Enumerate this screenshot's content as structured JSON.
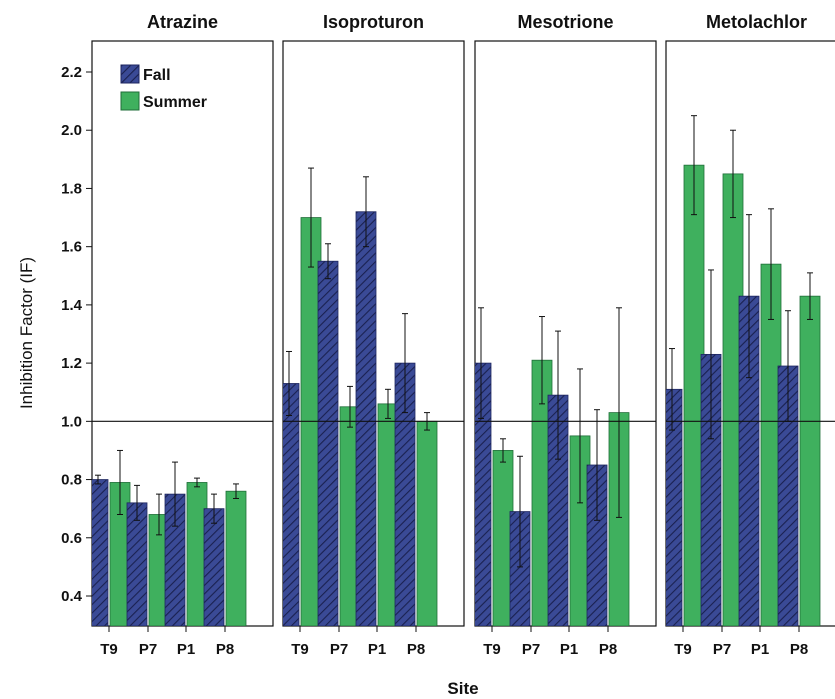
{
  "chart_data": {
    "type": "bar",
    "xlabel": "Site",
    "ylabel": "Inhibition Factor (IF)",
    "ylim": [
      0.3,
      2.3
    ],
    "yticks": [
      "0.4",
      "0.6",
      "0.8",
      "1.0",
      "1.2",
      "1.4",
      "1.6",
      "1.8",
      "2.0",
      "2.2"
    ],
    "reference_line": 1.0,
    "grid": false,
    "legend_position": "top-left",
    "categories": [
      "T9",
      "P7",
      "P1",
      "P8"
    ],
    "series_colors": {
      "Fall": "#3a4a96",
      "Summer": "#3fb05e"
    },
    "panels": [
      {
        "title": "Atrazine",
        "series": [
          {
            "name": "Fall",
            "values": [
              0.8,
              0.72,
              0.75,
              0.7
            ],
            "errors": [
              0.015,
              0.06,
              0.11,
              0.05
            ]
          },
          {
            "name": "Summer",
            "values": [
              0.79,
              0.68,
              0.79,
              0.76
            ],
            "errors": [
              0.11,
              0.07,
              0.015,
              0.025
            ]
          }
        ]
      },
      {
        "title": "Isoproturon",
        "series": [
          {
            "name": "Fall",
            "values": [
              1.13,
              1.55,
              1.72,
              1.2
            ],
            "errors": [
              0.11,
              0.06,
              0.12,
              0.17
            ]
          },
          {
            "name": "Summer",
            "values": [
              1.7,
              1.05,
              1.06,
              1.0
            ],
            "errors": [
              0.17,
              0.07,
              0.05,
              0.03
            ]
          }
        ]
      },
      {
        "title": "Mesotrione",
        "series": [
          {
            "name": "Fall",
            "values": [
              1.2,
              0.69,
              1.09,
              0.85
            ],
            "errors": [
              0.19,
              0.19,
              0.22,
              0.19
            ]
          },
          {
            "name": "Summer",
            "values": [
              0.9,
              1.21,
              0.95,
              1.03
            ],
            "errors": [
              0.04,
              0.15,
              0.23,
              0.36
            ]
          }
        ]
      },
      {
        "title": "Metolachlor",
        "series": [
          {
            "name": "Fall",
            "values": [
              1.11,
              1.23,
              1.43,
              1.19
            ],
            "errors": [
              0.14,
              0.29,
              0.28,
              0.19
            ]
          },
          {
            "name": "Summer",
            "values": [
              1.88,
              1.85,
              1.54,
              1.43
            ],
            "errors": [
              0.17,
              0.15,
              0.19,
              0.08
            ]
          }
        ]
      }
    ]
  }
}
